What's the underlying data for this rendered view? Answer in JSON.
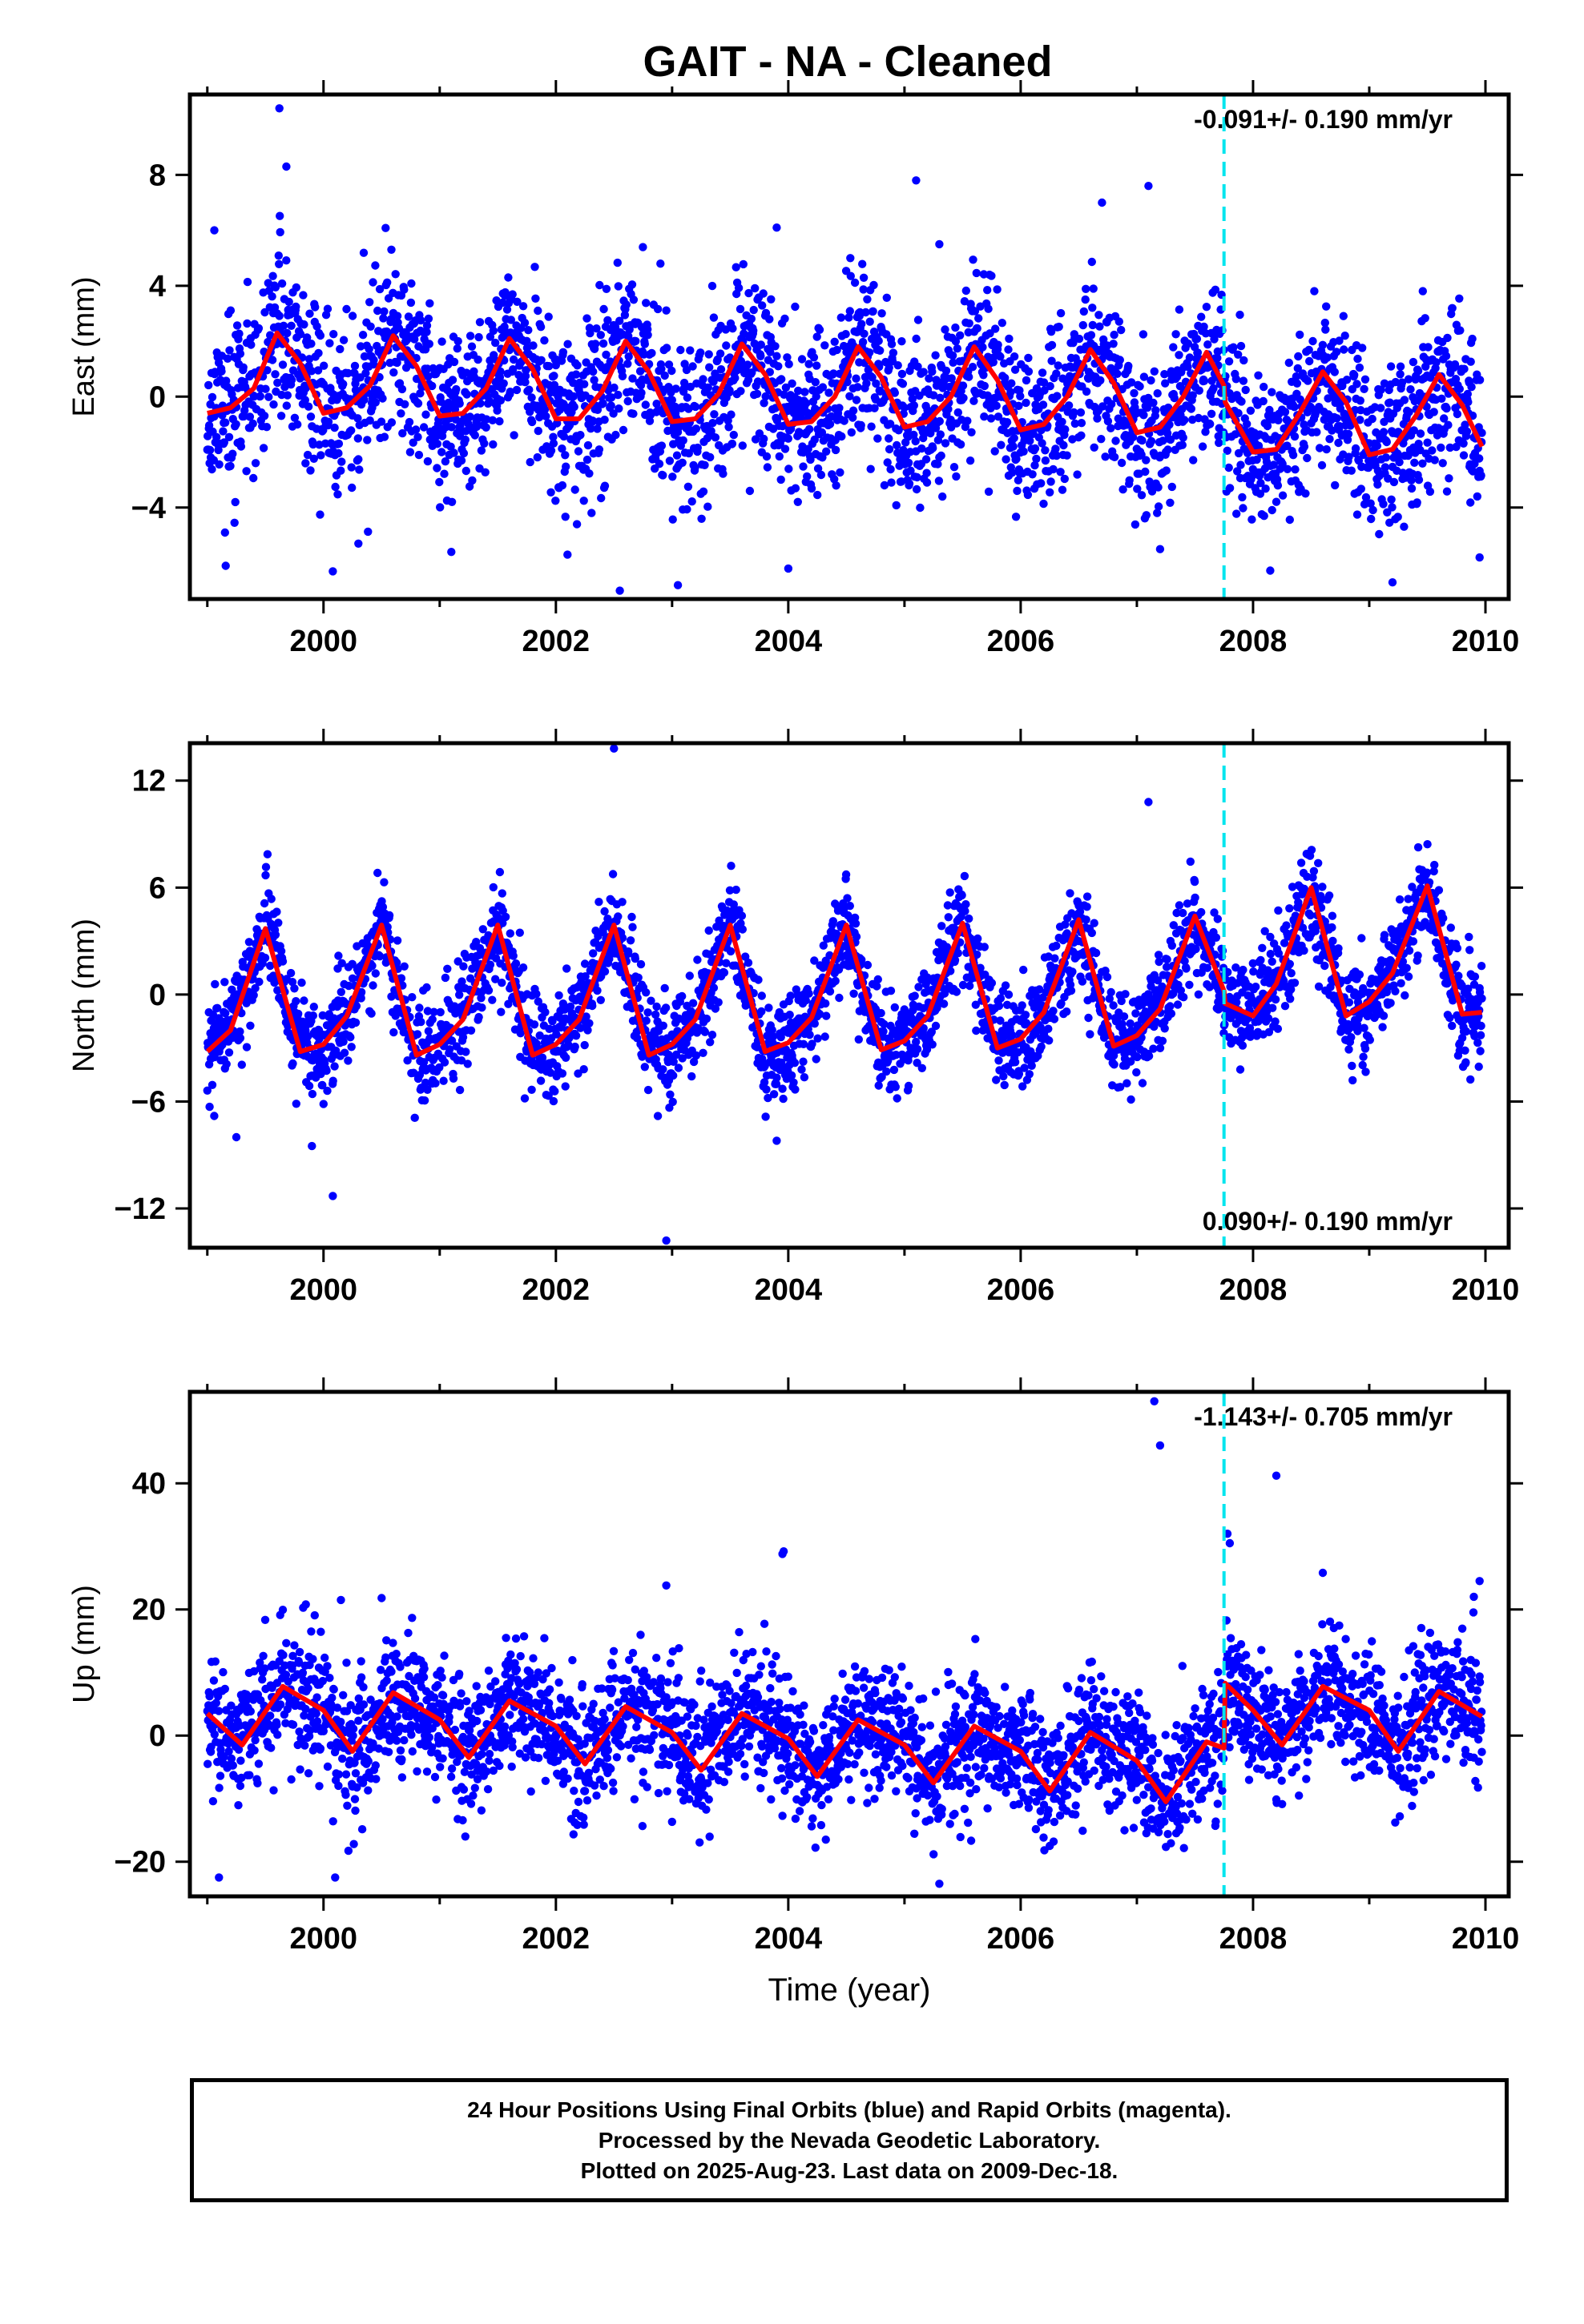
{
  "title": "GAIT  - NA - Cleaned",
  "footer": {
    "line1": "24 Hour Positions Using Final Orbits (blue) and Rapid Orbits (magenta).",
    "line2": "Processed by the Nevada Geodetic Laboratory.",
    "line3": "Plotted on 2025-Aug-23. Last data on 2009-Dec-18."
  },
  "colors": {
    "data": "#0000ff",
    "model": "#ff0000",
    "offset": "#00e5ee",
    "frame": "#000000"
  },
  "chart_data": [
    {
      "type": "scatter",
      "component": "east",
      "ylabel": "East (mm)",
      "xlabel": "",
      "xlim": [
        1998.85,
        2010.2
      ],
      "ylim": [
        -7.3,
        10.9
      ],
      "xticks": [
        2000,
        2002,
        2004,
        2006,
        2008,
        2010
      ],
      "yticks": [
        -4,
        0,
        4,
        8
      ],
      "rate_text": "-0.091+/- 0.190 mm/yr",
      "rate_position": "top-right",
      "offset_epoch": 2007.75,
      "model_series": {
        "x": [
          1999.0,
          1999.2,
          1999.4,
          1999.6,
          1999.8,
          2000.0,
          2000.2,
          2000.4,
          2000.6,
          2000.8,
          2001.0,
          2001.2,
          2001.4,
          2001.6,
          2001.8,
          2002.0,
          2002.2,
          2002.4,
          2002.6,
          2002.8,
          2003.0,
          2003.2,
          2003.4,
          2003.6,
          2003.8,
          2004.0,
          2004.2,
          2004.4,
          2004.6,
          2004.8,
          2005.0,
          2005.2,
          2005.4,
          2005.6,
          2005.8,
          2006.0,
          2006.2,
          2006.4,
          2006.6,
          2006.8,
          2007.0,
          2007.2,
          2007.4,
          2007.6,
          2007.75,
          2007.76,
          2008.0,
          2008.2,
          2008.4,
          2008.6,
          2008.8,
          2009.0,
          2009.2,
          2009.4,
          2009.6,
          2009.8,
          2009.97
        ],
        "y": [
          -0.6,
          -0.4,
          0.3,
          2.3,
          1.2,
          -0.6,
          -0.4,
          0.4,
          2.2,
          1.1,
          -0.7,
          -0.6,
          0.3,
          2.1,
          1.0,
          -0.8,
          -0.8,
          0.2,
          2.0,
          0.9,
          -0.9,
          -0.8,
          0.1,
          1.9,
          0.8,
          -1.0,
          -0.9,
          0.0,
          1.8,
          0.7,
          -1.1,
          -0.9,
          0.0,
          1.8,
          0.6,
          -1.2,
          -1.0,
          0.0,
          1.7,
          0.5,
          -1.3,
          -1.1,
          0.0,
          1.6,
          0.4,
          -0.2,
          -2.0,
          -1.9,
          -0.6,
          0.9,
          -0.2,
          -2.1,
          -1.9,
          -0.7,
          0.8,
          -0.3,
          -1.8
        ]
      },
      "outliers": {
        "x": [
          1999.06,
          1999.62,
          1999.68,
          2000.08,
          2000.3,
          2001.1,
          2002.1,
          2002.55,
          2002.9,
          2003.05,
          2003.9,
          2004.0,
          2005.1,
          2005.3,
          2006.7,
          2007.1,
          2007.2,
          2009.2,
          2009.95
        ],
        "y": [
          6.0,
          10.4,
          8.3,
          -6.3,
          -5.3,
          -5.6,
          -5.7,
          -7.0,
          4.8,
          -6.8,
          6.1,
          -6.2,
          7.8,
          5.5,
          7.0,
          7.6,
          -5.5,
          -6.7,
          -5.8
        ]
      },
      "scatter_seed": 11,
      "scatter_noise": 1.5
    },
    {
      "type": "scatter",
      "component": "north",
      "ylabel": "North (mm)",
      "xlabel": "",
      "xlim": [
        1998.85,
        2010.2
      ],
      "ylim": [
        -14.2,
        14.1
      ],
      "xticks": [
        2000,
        2002,
        2004,
        2006,
        2008,
        2010
      ],
      "yticks": [
        -12,
        -6,
        0,
        6,
        12
      ],
      "rate_text": "0.090+/- 0.190 mm/yr",
      "rate_position": "bottom-right",
      "offset_epoch": 2007.75,
      "model_series": {
        "x": [
          1999.0,
          1999.2,
          1999.5,
          1999.8,
          2000.0,
          2000.2,
          2000.5,
          2000.8,
          2001.0,
          2001.2,
          2001.5,
          2001.8,
          2002.0,
          2002.2,
          2002.5,
          2002.8,
          2003.0,
          2003.2,
          2003.5,
          2003.8,
          2004.0,
          2004.2,
          2004.5,
          2004.8,
          2005.0,
          2005.2,
          2005.5,
          2005.8,
          2006.0,
          2006.2,
          2006.5,
          2006.8,
          2007.0,
          2007.2,
          2007.5,
          2007.75,
          2007.76,
          2008.0,
          2008.2,
          2008.5,
          2008.8,
          2009.0,
          2009.2,
          2009.5,
          2009.8,
          2009.97
        ],
        "y": [
          -3.2,
          -2.0,
          3.7,
          -3.2,
          -2.8,
          -1.2,
          3.9,
          -3.4,
          -2.8,
          -1.4,
          3.9,
          -3.4,
          -2.8,
          -1.4,
          3.9,
          -3.4,
          -2.8,
          -1.4,
          3.9,
          -3.2,
          -2.7,
          -1.3,
          3.9,
          -3.1,
          -2.6,
          -1.2,
          4.0,
          -3.0,
          -2.5,
          -1.0,
          4.2,
          -2.9,
          -2.3,
          -0.8,
          4.4,
          0.2,
          -0.5,
          -1.2,
          0.6,
          6.0,
          -1.2,
          -0.4,
          1.2,
          6.1,
          -1.1,
          -1.0
        ]
      },
      "outliers": {
        "x": [
          1999.25,
          1999.9,
          2000.08,
          2002.5,
          2002.95,
          2003.9,
          2007.1
        ],
        "y": [
          -8.0,
          -8.5,
          -11.3,
          13.8,
          -13.8,
          -8.2,
          10.8
        ]
      },
      "scatter_seed": 23,
      "scatter_noise": 1.4
    },
    {
      "type": "scatter",
      "component": "up",
      "ylabel": "Up (mm)",
      "xlabel": "Time (year)",
      "xlim": [
        1998.85,
        2010.2
      ],
      "ylim": [
        -25.5,
        54.5
      ],
      "xticks": [
        2000,
        2002,
        2004,
        2006,
        2008,
        2010
      ],
      "yticks": [
        -20,
        0,
        20,
        40
      ],
      "rate_text": "-1.143+/- 0.705 mm/yr",
      "rate_position": "top-right",
      "offset_epoch": 2007.75,
      "model_series": {
        "x": [
          1999.0,
          1999.3,
          1999.65,
          2000.0,
          2000.25,
          2000.6,
          2001.0,
          2001.25,
          2001.6,
          2002.0,
          2002.25,
          2002.6,
          2003.0,
          2003.25,
          2003.6,
          2004.0,
          2004.25,
          2004.6,
          2005.0,
          2005.25,
          2005.6,
          2006.0,
          2006.25,
          2006.6,
          2007.0,
          2007.25,
          2007.6,
          2007.75,
          2007.76,
          2008.0,
          2008.25,
          2008.6,
          2009.0,
          2009.25,
          2009.6,
          2009.97
        ],
        "y": [
          3.5,
          -1.5,
          7.8,
          4.0,
          -2.5,
          6.8,
          2.5,
          -3.5,
          5.5,
          1.5,
          -4.5,
          4.6,
          0.5,
          -5.5,
          3.5,
          -0.5,
          -6.5,
          2.5,
          -1.5,
          -7.5,
          1.5,
          -2.5,
          -8.8,
          0.5,
          -4.0,
          -10.5,
          -1.0,
          -2.0,
          8.3,
          4.0,
          -1.5,
          7.8,
          4.0,
          -2.5,
          7.0,
          3.0
        ]
      },
      "outliers": {
        "x": [
          1999.1,
          2000.1,
          2000.15,
          2000.5,
          2002.95,
          2003.95,
          2003.96,
          2005.3,
          2007.15,
          2007.2,
          2007.78,
          2007.8,
          2008.2,
          2008.6,
          2009.9,
          2009.95
        ],
        "y": [
          -22.5,
          -22.5,
          21.5,
          21.8,
          23.8,
          28.8,
          29.2,
          -23.5,
          53.0,
          46.0,
          32.0,
          30.5,
          41.2,
          25.8,
          22.0,
          24.5
        ]
      },
      "scatter_seed": 37,
      "scatter_noise": 5.2
    }
  ]
}
